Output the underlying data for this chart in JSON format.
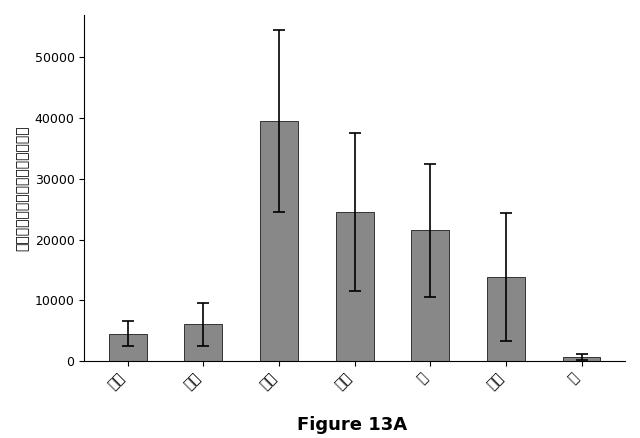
{
  "categories": [
    "血浆",
    "腫瑾",
    "肝臓",
    "腎臓",
    "肺",
    "心臓",
    "脳"
  ],
  "values": [
    4500,
    6000,
    39500,
    24500,
    21500,
    13800,
    700
  ],
  "errors": [
    2000,
    3500,
    15000,
    13000,
    11000,
    10500,
    500
  ],
  "bar_color": "#888888",
  "bar_edgecolor": "#333333",
  "ylabel": "組織１グラム当たりのナノグラム",
  "title": "Figure 13A",
  "ylim": [
    0,
    57000
  ],
  "yticks": [
    0,
    10000,
    20000,
    30000,
    40000,
    50000
  ],
  "background_color": "#ffffff",
  "title_fontsize": 13,
  "ylabel_fontsize": 10,
  "tick_fontsize": 9,
  "xtick_fontsize": 10
}
